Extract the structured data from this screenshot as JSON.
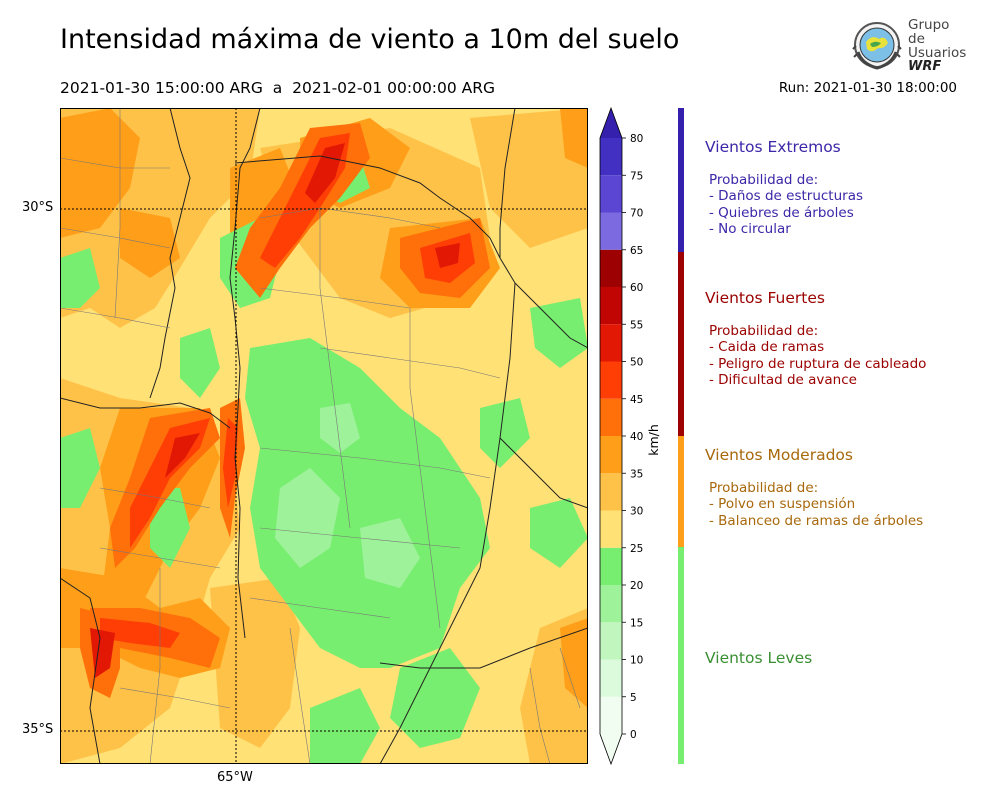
{
  "title": "Intensidad máxima de viento a 10m del suelo",
  "period": "2021-01-30 15:00:00 ARG  a  2021-02-01 00:00:00 ARG",
  "run": "Run: 2021-01-30 18:00:00",
  "logo": {
    "line1": "Grupo de",
    "line2": "Usuarios",
    "line3": "WRF"
  },
  "map": {
    "lat_labels": [
      "30°S",
      "35°S"
    ],
    "lon_labels": [
      "65°W"
    ]
  },
  "colorbar": {
    "unit": "km/h",
    "ticks": [
      "80",
      "75",
      "70",
      "65",
      "60",
      "55",
      "50",
      "45",
      "40",
      "35",
      "30",
      "25",
      "20",
      "15",
      "10",
      "5",
      "0"
    ],
    "bins": [
      {
        "from": 0,
        "to": 5,
        "color": "#f0fdf0"
      },
      {
        "from": 5,
        "to": 10,
        "color": "#dcfadc"
      },
      {
        "from": 10,
        "to": 15,
        "color": "#c1f6bf"
      },
      {
        "from": 15,
        "to": 20,
        "color": "#9ef29a"
      },
      {
        "from": 20,
        "to": 25,
        "color": "#78ee70"
      },
      {
        "from": 25,
        "to": 30,
        "color": "#ffe176"
      },
      {
        "from": 30,
        "to": 35,
        "color": "#ffc249"
      },
      {
        "from": 35,
        "to": 40,
        "color": "#ff9e18"
      },
      {
        "from": 40,
        "to": 45,
        "color": "#ff6f0a"
      },
      {
        "from": 45,
        "to": 50,
        "color": "#ff3e06"
      },
      {
        "from": 50,
        "to": 55,
        "color": "#e21704"
      },
      {
        "from": 55,
        "to": 60,
        "color": "#c10503"
      },
      {
        "from": 60,
        "to": 65,
        "color": "#9e0101"
      },
      {
        "from": 65,
        "to": 70,
        "color": "#7b6ae0"
      },
      {
        "from": 70,
        "to": 75,
        "color": "#5a46d2"
      },
      {
        "from": 75,
        "to": 80,
        "color": "#4130c2"
      },
      {
        "from": 80,
        "to": 85,
        "color": "#3420ad"
      }
    ]
  },
  "legend": {
    "extremos": {
      "title": "Vientos Extremos",
      "text": "Probabilidad de:\n- Daños de estructuras\n- Quiebres de árboles\n- No circular",
      "color": "#3b27a8"
    },
    "fuertes": {
      "title": "Vientos Fuertes",
      "text": "Probabilidad de:\n- Caida de ramas\n- Peligro de ruptura de cableado\n- Dificultad de avance",
      "color": "#9b0000"
    },
    "moderados": {
      "title": "Vientos Moderados",
      "text": "Probabilidad de:\n- Polvo en suspensión\n- Balanceo de ramas de árboles",
      "color": "#a8680c"
    },
    "leves": {
      "title": "Vientos Leves",
      "color": "#3a8f33"
    }
  }
}
